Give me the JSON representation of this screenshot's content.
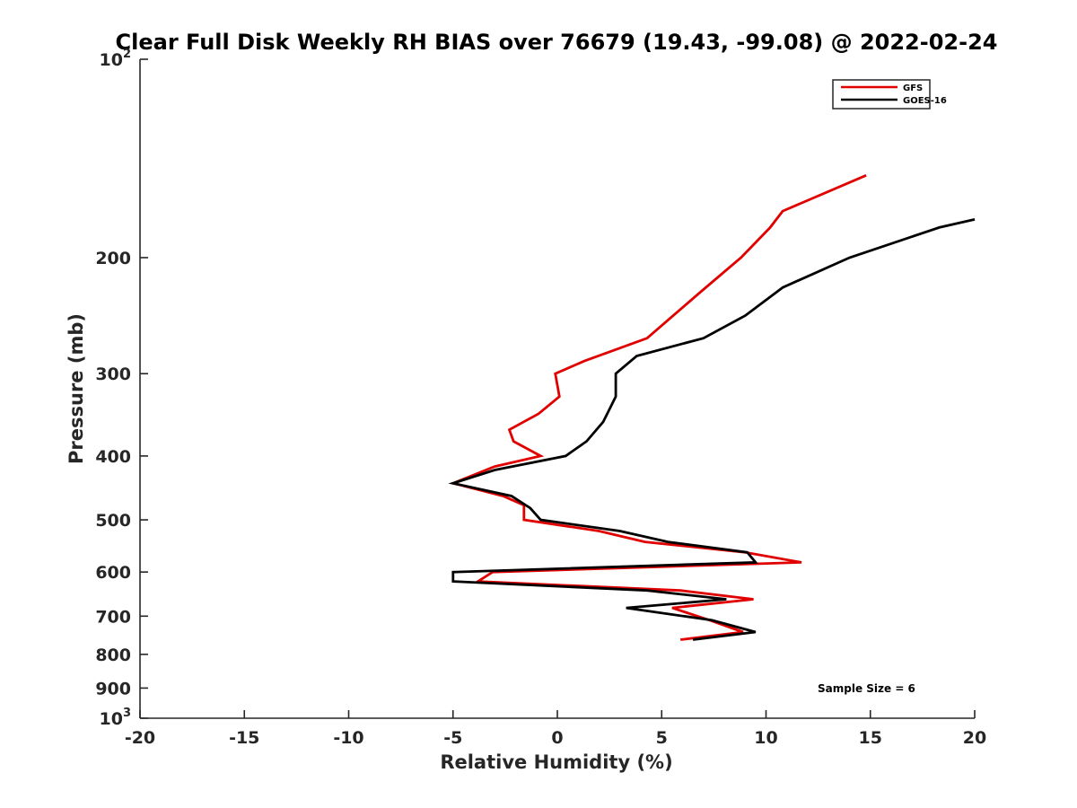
{
  "chart_data": {
    "type": "line",
    "title": "Clear Full Disk Weekly RH BIAS over 76679 (19.43, -99.08) @ 2022-02-24",
    "xlabel": "Relative Humidity (%)",
    "ylabel": "Pressure (mb)",
    "xlim": [
      -20,
      20
    ],
    "ylim": [
      100,
      1000
    ],
    "y_scale": "log",
    "y_reversed": true,
    "x_ticks": [
      "-20",
      "-15",
      "-10",
      "-5",
      "0",
      "5",
      "10",
      "15",
      "20"
    ],
    "y_ticks": [
      {
        "base": "10",
        "sup": "2"
      },
      {
        "base": "200",
        "sup": ""
      },
      {
        "base": "300",
        "sup": ""
      },
      {
        "base": "400",
        "sup": ""
      },
      {
        "base": "500",
        "sup": ""
      },
      {
        "base": "600",
        "sup": ""
      },
      {
        "base": "700",
        "sup": ""
      },
      {
        "base": "800",
        "sup": ""
      },
      {
        "base": "900",
        "sup": ""
      },
      {
        "base": "10",
        "sup": "3"
      }
    ],
    "legend_position": "top-right",
    "grid": false,
    "series": [
      {
        "name": "GFS",
        "color": "#e00000",
        "points": [
          {
            "x": 14.8,
            "y": 150
          },
          {
            "x": 10.8,
            "y": 170
          },
          {
            "x": 10.2,
            "y": 180
          },
          {
            "x": 8.8,
            "y": 200
          },
          {
            "x": 6.9,
            "y": 225
          },
          {
            "x": 4.3,
            "y": 265
          },
          {
            "x": 1.3,
            "y": 287
          },
          {
            "x": -0.1,
            "y": 300
          },
          {
            "x": 0.1,
            "y": 325
          },
          {
            "x": -0.9,
            "y": 345
          },
          {
            "x": -2.3,
            "y": 365
          },
          {
            "x": -2.1,
            "y": 380
          },
          {
            "x": -0.8,
            "y": 400
          },
          {
            "x": -3.0,
            "y": 415
          },
          {
            "x": -5.0,
            "y": 440
          },
          {
            "x": -2.6,
            "y": 460
          },
          {
            "x": -1.6,
            "y": 475
          },
          {
            "x": -1.6,
            "y": 500
          },
          {
            "x": 2.0,
            "y": 520
          },
          {
            "x": 4.2,
            "y": 540
          },
          {
            "x": 9.0,
            "y": 560
          },
          {
            "x": 11.7,
            "y": 580
          },
          {
            "x": -3.1,
            "y": 600
          },
          {
            "x": -3.8,
            "y": 620
          },
          {
            "x": 5.9,
            "y": 640
          },
          {
            "x": 9.4,
            "y": 660
          },
          {
            "x": 5.5,
            "y": 680
          },
          {
            "x": 7.3,
            "y": 710
          },
          {
            "x": 8.9,
            "y": 740
          },
          {
            "x": 5.9,
            "y": 760
          }
        ]
      },
      {
        "name": "GOES-16",
        "color": "#000000",
        "points": [
          {
            "x": 20.0,
            "y": 175
          },
          {
            "x": 18.3,
            "y": 180
          },
          {
            "x": 14.0,
            "y": 200
          },
          {
            "x": 10.8,
            "y": 222
          },
          {
            "x": 9.0,
            "y": 245
          },
          {
            "x": 7.0,
            "y": 265
          },
          {
            "x": 3.8,
            "y": 282
          },
          {
            "x": 2.8,
            "y": 300
          },
          {
            "x": 2.8,
            "y": 325
          },
          {
            "x": 2.2,
            "y": 355
          },
          {
            "x": 1.4,
            "y": 380
          },
          {
            "x": 0.4,
            "y": 400
          },
          {
            "x": -3.0,
            "y": 420
          },
          {
            "x": -5.0,
            "y": 440
          },
          {
            "x": -2.2,
            "y": 460
          },
          {
            "x": -1.3,
            "y": 480
          },
          {
            "x": -0.8,
            "y": 500
          },
          {
            "x": 3.0,
            "y": 520
          },
          {
            "x": 5.3,
            "y": 540
          },
          {
            "x": 9.1,
            "y": 560
          },
          {
            "x": 9.5,
            "y": 580
          },
          {
            "x": -5.0,
            "y": 600
          },
          {
            "x": -5.0,
            "y": 620
          },
          {
            "x": 4.3,
            "y": 640
          },
          {
            "x": 8.1,
            "y": 660
          },
          {
            "x": 3.3,
            "y": 680
          },
          {
            "x": 7.4,
            "y": 710
          },
          {
            "x": 9.5,
            "y": 740
          },
          {
            "x": 6.5,
            "y": 760
          }
        ]
      }
    ],
    "annotation": "Sample Size = 6"
  }
}
